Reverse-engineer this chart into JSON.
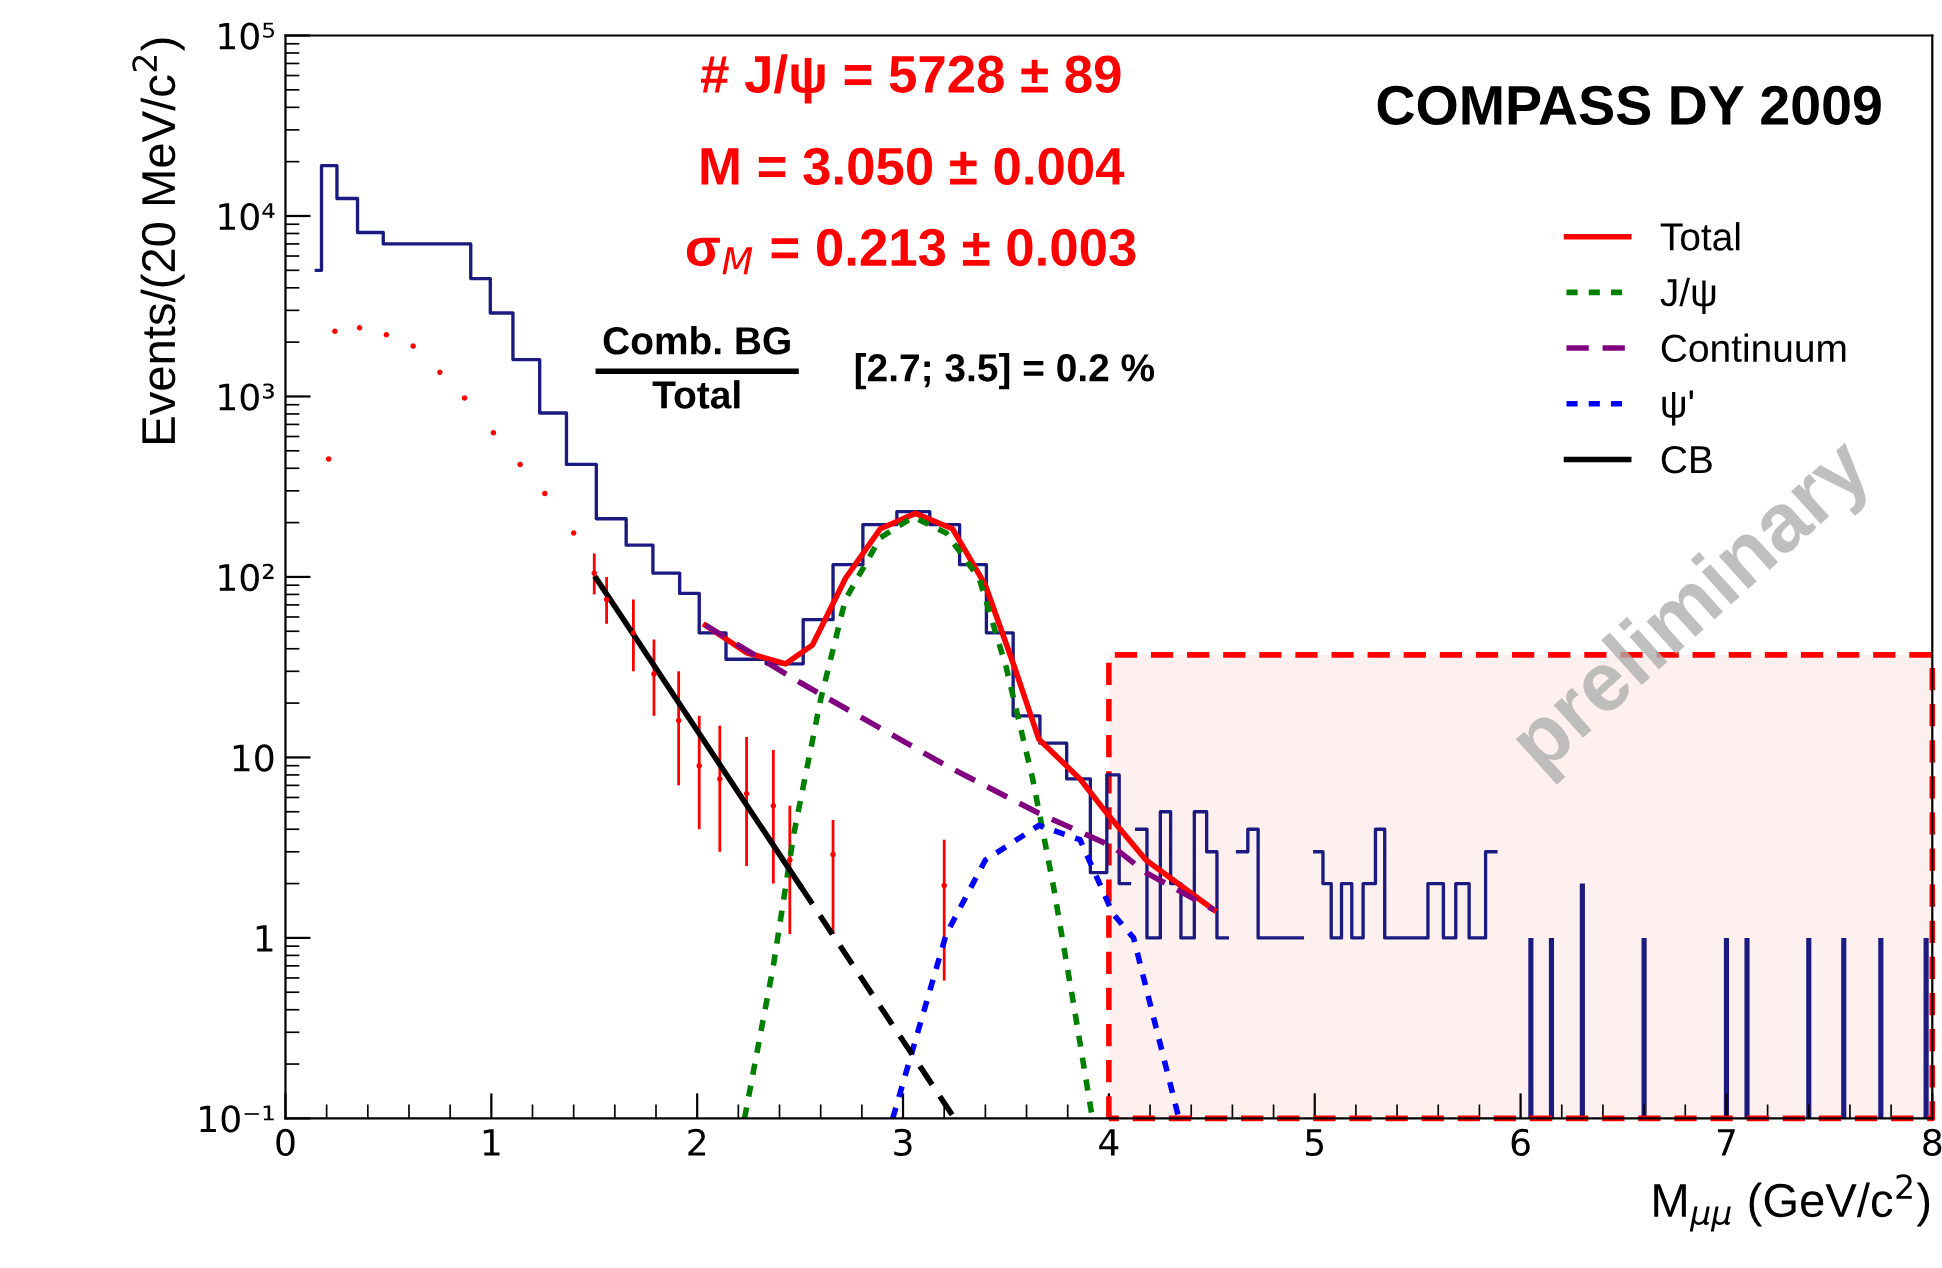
{
  "chart_data": {
    "type": "line",
    "title": "COMPASS DY 2009",
    "xlabel": "M$_{μμ}$ (GeV/c$^{2}$)",
    "ylabel": "Events/(20 MeV/c$^{2}$)",
    "log": "y",
    "xlim": [
      0,
      8
    ],
    "ylim": [
      0.1,
      100000
    ],
    "xticks": [
      0,
      1,
      2,
      3,
      4,
      5,
      6,
      7,
      8
    ],
    "yticks": [
      {
        "value": 0.1,
        "label": "10⁻¹"
      },
      1,
      10,
      {
        "value": 100,
        "label": "10²"
      },
      {
        "value": 1000,
        "label": "10³"
      },
      {
        "value": 10000,
        "label": "10⁴"
      },
      {
        "value": 100000,
        "label": "10⁵"
      }
    ],
    "grid": false,
    "legend": "top right",
    "annotations": [
      "# J/ψ = 5728 ± 89",
      "M = 3.050 ± 0.004",
      "σ$_{M}$ = 0.213 ± 0.003",
      "Comb. BG",
      "Total",
      "[2.7; 3.5] = 0.2 %",
      "preliminary"
    ],
    "series": [
      {
        "type": "area",
        "color": "#ff0000",
        "line_style": "dashed",
        "x": [
          4,
          8
        ],
        "values": [
          37,
          37
        ]
      },
      {
        "type": "step",
        "color": "#1a1a80",
        "x": [
          0.15,
          0.2,
          0.3,
          0.4,
          0.55,
          0.7,
          0.85,
          0.95,
          1.04,
          1.17,
          1.3,
          1.43,
          1.59,
          1.72,
          1.85,
          1.98,
          2.04,
          2.24,
          2.43,
          2.6,
          2.72,
          2.89,
          3.05,
          3.21,
          3.34,
          3.47,
          3.6,
          3.73,
          3.86,
          3.96,
          4.02,
          4.08,
          4.12,
          4.15,
          4.22,
          4.28,
          4.32,
          4.38,
          4.45,
          4.5,
          4.55,
          4.6,
          4.65,
          4.7,
          4.75,
          4.9,
          4.98,
          5.02,
          5.06,
          5.1,
          5.16,
          5.2,
          5.27,
          5.32,
          5.36,
          5.4,
          5.5,
          5.6,
          5.65,
          5.72,
          5.78,
          5.88
        ],
        "values": [
          5000,
          19000,
          12500,
          8100,
          7000,
          7000,
          7000,
          4500,
          2900,
          1600,
          810,
          420,
          210,
          150,
          105,
          81,
          49,
          35,
          33,
          58,
          117,
          195,
          230,
          195,
          117,
          49,
          17,
          12,
          7.6,
          2.3,
          8,
          2,
          null,
          4,
          1,
          5,
          2,
          1,
          5,
          3,
          1,
          null,
          3,
          4,
          1,
          1,
          null,
          3,
          2,
          1,
          2,
          1,
          2,
          4,
          1,
          1,
          1,
          2,
          1,
          2,
          1,
          3
        ]
      },
      {
        "type": "bar",
        "color": "#1a1a80",
        "x": [
          6.05,
          6.15,
          6.3,
          6.6,
          7.0,
          7.1,
          7.4,
          7.57,
          7.75,
          7.97
        ],
        "values": [
          1,
          1,
          2,
          1,
          1,
          1,
          1,
          1,
          1,
          1
        ]
      },
      {
        "type": "scatter",
        "color": "#ff0000",
        "marker": "none",
        "x": [
          0.21,
          0.24,
          0.36,
          0.49,
          0.62,
          0.75,
          0.87,
          1.01,
          1.14,
          1.26,
          1.4,
          1.5,
          1.56,
          1.69,
          1.79,
          1.91,
          2.01,
          2.11,
          2.24,
          2.37,
          2.45,
          2.66,
          3.2
        ],
        "values": [
          450,
          2300,
          2400,
          2200,
          1900,
          1360,
          980,
          630,
          420,
          290,
          175,
          105,
          75,
          49,
          29,
          16,
          9,
          7.6,
          6.3,
          5.4,
          2.7,
          2.9,
          1.95
        ],
        "errors": [
          null,
          null,
          null,
          null,
          null,
          null,
          null,
          null,
          null,
          null,
          null,
          [
            80,
            135
          ],
          [
            55,
            100
          ],
          [
            30,
            75
          ],
          [
            17,
            45
          ],
          [
            7,
            30
          ],
          [
            4,
            17
          ],
          [
            3,
            15
          ],
          [
            2.5,
            13
          ],
          [
            2,
            11
          ],
          [
            1.05,
            5.4
          ],
          [
            1.05,
            4.5
          ],
          [
            0.58,
            3.5
          ]
        ]
      },
      {
        "name": "Total",
        "color": "#ff0000",
        "line_style": "solid",
        "x": [
          2.04,
          2.24,
          2.43,
          2.56,
          2.72,
          2.89,
          3.06,
          3.24,
          3.4,
          3.54,
          3.66,
          3.86,
          3.99,
          4.18,
          4.51
        ],
        "values": [
          54,
          38,
          33,
          42,
          98,
          185,
          225,
          185,
          90,
          32,
          12.6,
          7.6,
          4.9,
          2.7,
          1.43
        ]
      },
      {
        "name": "J/ψ",
        "color": "#008000",
        "line_style": "dotted",
        "x": [
          2.23,
          2.37,
          2.47,
          2.6,
          2.72,
          2.89,
          3.05,
          3.21,
          3.37,
          3.5,
          3.63,
          3.73,
          3.83,
          3.92
        ],
        "values": [
          0.1,
          0.7,
          3.8,
          21,
          75,
          165,
          215,
          175,
          98,
          32,
          7.6,
          1.95,
          0.42,
          0.1
        ]
      },
      {
        "name": "Continuum",
        "color": "#800080",
        "line_style": "dashed",
        "x": [
          2.04,
          2.5,
          3.21,
          3.66,
          4.02,
          4.18,
          4.51
        ],
        "values": [
          54,
          26,
          9,
          4.9,
          3.2,
          2.3,
          1.43
        ]
      },
      {
        "name": "ψ'",
        "color": "#0000ff",
        "line_style": "dotted",
        "x": [
          2.95,
          3.21,
          3.4,
          3.66,
          3.86,
          4.02,
          4.12,
          4.34
        ],
        "values": [
          0.1,
          1.05,
          2.7,
          4.2,
          3.5,
          1.36,
          1.0,
          0.1
        ]
      },
      {
        "name": "CB",
        "color": "#000000",
        "line_style": "solid",
        "x": [
          1.51,
          2.5
        ],
        "values": [
          98,
          1.95
        ]
      },
      {
        "color": "#000000",
        "line_style": "dashed",
        "x": [
          2.5,
          3.25
        ],
        "values": [
          1.95,
          0.1
        ]
      }
    ]
  }
}
